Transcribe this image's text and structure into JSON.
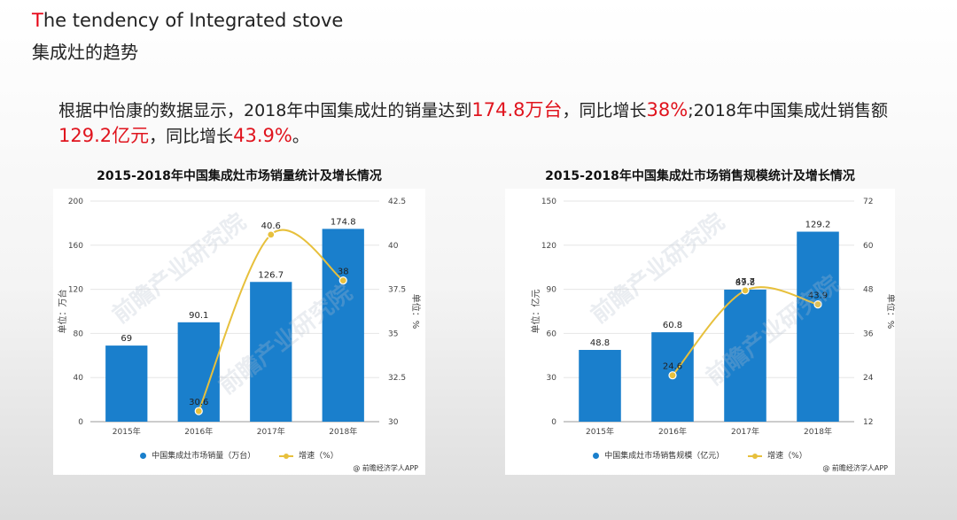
{
  "header": {
    "title_en_first": "T",
    "title_en_rest": "he tendency of Integrated stove",
    "title_cn": "集成灶的趋势"
  },
  "intro": {
    "p1": "根据中怡康的数据显示，2018年中国集成灶的销量达到",
    "h1": "174.8万台",
    "p2": "，同比增长",
    "h2": "38%",
    "p3": ";2018年中国集成灶销售额",
    "h3": "129.2亿元",
    "p4": "，同比增长",
    "h4": "43.9%",
    "p5": "。"
  },
  "colors": {
    "bar": "#1a7fcc",
    "line": "#e7c03c",
    "highlight": "#e0141e"
  },
  "chart_data": [
    {
      "type": "bar",
      "title": "2015-2018年中国集成灶市场销量统计及增长情况",
      "categories": [
        "2015年",
        "2016年",
        "2017年",
        "2018年"
      ],
      "series": [
        {
          "name": "中国集成灶市场销量（万台）",
          "type": "bar",
          "axis": "left",
          "values": [
            69,
            90.1,
            126.7,
            174.8
          ]
        },
        {
          "name": "增速（%）",
          "type": "line",
          "axis": "right",
          "values": [
            null,
            30.6,
            40.6,
            38
          ]
        }
      ],
      "ylabel": "单位：万台",
      "y2label": "单位：%",
      "ylim": [
        0,
        200
      ],
      "yticks": [
        0,
        40,
        80,
        120,
        160,
        200
      ],
      "y2lim": [
        30,
        42.5
      ],
      "y2ticks": [
        30,
        32.5,
        35,
        37.5,
        40,
        42.5
      ],
      "source": "@ 前瞻经济学人APP",
      "watermark": "前瞻产业研究院",
      "legend_position": "bottom"
    },
    {
      "type": "bar",
      "title": "2015-2018年中国集成灶市场销售规模统计及增长情况",
      "categories": [
        "2015年",
        "2016年",
        "2017年",
        "2018年"
      ],
      "series": [
        {
          "name": "中国集成灶市场销售规模（亿元）",
          "type": "bar",
          "axis": "left",
          "values": [
            48.8,
            60.8,
            89.8,
            129.2
          ]
        },
        {
          "name": "增速（%）",
          "type": "line",
          "axis": "right",
          "values": [
            null,
            24.6,
            47.7,
            43.9
          ]
        }
      ],
      "ylabel": "单位：亿元",
      "y2label": "单位：%",
      "ylim": [
        0,
        150
      ],
      "yticks": [
        0,
        30,
        60,
        90,
        120,
        150
      ],
      "y2lim": [
        12,
        72
      ],
      "y2ticks": [
        12,
        24,
        36,
        48,
        60,
        72
      ],
      "source": "@ 前瞻经济学人APP",
      "watermark": "前瞻产业研究院",
      "legend_position": "bottom"
    }
  ]
}
